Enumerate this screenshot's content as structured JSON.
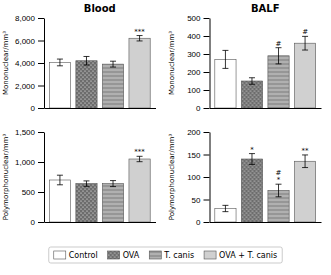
{
  "chart_data": [
    {
      "type": "bar",
      "title": "Blood",
      "ylabel": "Mononuclear/mm³",
      "categories": [
        "Control",
        "OVA",
        "T. canis",
        "OVA + T. canis"
      ],
      "colors": [
        "white",
        "#6d6d6d",
        "#b0b0b0",
        "#d0d0d0"
      ],
      "values": [
        4050,
        4200,
        3900,
        6200
      ],
      "errors": [
        300,
        380,
        260,
        240
      ],
      "annotations": [
        {
          "text": "***",
          "x": "OVA + T. canis"
        }
      ],
      "ylim": [
        0,
        8000
      ],
      "yticks": [
        0,
        {
          "value": 2000,
          "label": "2,000"
        },
        {
          "value": 4000,
          "label": "4,000"
        },
        {
          "value": 6000,
          "label": "6,000"
        },
        {
          "value": 8000,
          "label": "8,000"
        }
      ],
      "tick_labels": "y",
      "legend": "bottom"
    },
    {
      "type": "bar",
      "title": "BALF",
      "ylabel": "Mononuclear/mm³",
      "categories": [
        "Control",
        "OVA",
        "T. canis",
        "OVA + T. canis"
      ],
      "colors": [
        "white",
        "#6d6d6d",
        "#b0b0b0",
        "#d0d0d0"
      ],
      "values": [
        270,
        150,
        290,
        360
      ],
      "errors": [
        50,
        18,
        45,
        38
      ],
      "annotations": [
        {
          "text": "#",
          "x": "T. canis"
        },
        {
          "text": "#",
          "x": "OVA + T. canis"
        }
      ],
      "ylim": [
        0,
        500
      ],
      "yticks": [
        0,
        100,
        200,
        300,
        400,
        500
      ],
      "tick_labels": "y"
    },
    {
      "type": "bar",
      "ylabel": "Polymorphonuclear/mm³",
      "categories": [
        "Control",
        "OVA",
        "T. canis",
        "OVA + T. canis"
      ],
      "colors": [
        "white",
        "#6d6d6d",
        "#b0b0b0",
        "#d0d0d0"
      ],
      "values": [
        700,
        640,
        640,
        1050
      ],
      "errors": [
        80,
        45,
        50,
        45
      ],
      "annotations": [
        {
          "text": "***",
          "x": "OVA + T. canis"
        }
      ],
      "ylim": [
        0,
        1500
      ],
      "yticks": [
        0,
        500,
        {
          "value": 1000,
          "label": "1,000"
        },
        {
          "value": 1500,
          "label": "1,500"
        }
      ],
      "tick_labels": "y"
    },
    {
      "type": "bar",
      "ylabel": "Polymorphonuclear/mm³",
      "categories": [
        "Control",
        "OVA",
        "T. canis",
        "OVA + T. canis"
      ],
      "colors": [
        "white",
        "#6d6d6d",
        "#b0b0b0",
        "#d0d0d0"
      ],
      "values": [
        30,
        140,
        70,
        135
      ],
      "errors": [
        7,
        12,
        14,
        14
      ],
      "annotations": [
        {
          "text": "*",
          "x": "OVA"
        },
        {
          "text": "#\n*",
          "x": "T. canis"
        },
        {
          "text": "**",
          "x": "OVA + T. canis"
        }
      ],
      "ylim": [
        0,
        200
      ],
      "yticks": [
        0,
        50,
        100,
        150,
        200
      ],
      "tick_labels": "y"
    }
  ]
}
